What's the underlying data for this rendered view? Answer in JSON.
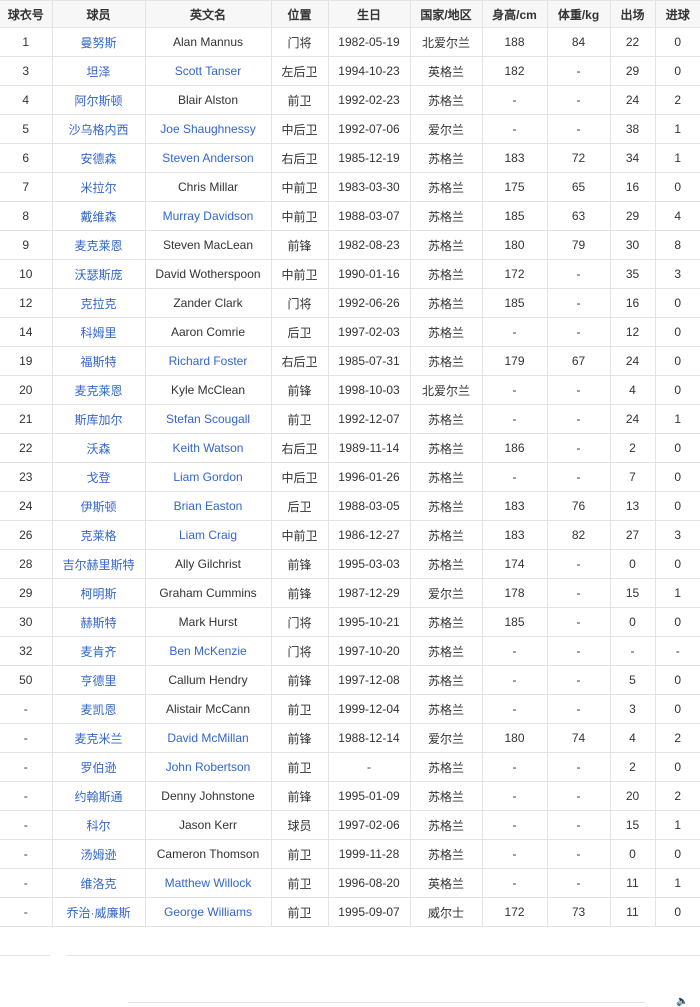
{
  "table": {
    "headers": [
      "球衣号",
      "球员",
      "英文名",
      "位置",
      "生日",
      "国家/地区",
      "身高/cm",
      "体重/kg",
      "出场",
      "进球"
    ],
    "link_color": "#3366cc",
    "rows": [
      {
        "no": "1",
        "cn": "曼努斯",
        "en": "Alan Mannus",
        "en_link": false,
        "pos": "门将",
        "birth": "1982-05-19",
        "nation": "北爱尔兰",
        "height": "188",
        "weight": "84",
        "apps": "22",
        "goals": "0"
      },
      {
        "no": "3",
        "cn": "坦泽",
        "en": "Scott Tanser",
        "en_link": true,
        "pos": "左后卫",
        "birth": "1994-10-23",
        "nation": "英格兰",
        "height": "182",
        "weight": "-",
        "apps": "29",
        "goals": "0"
      },
      {
        "no": "4",
        "cn": "阿尔斯顿",
        "en": "Blair Alston",
        "en_link": false,
        "pos": "前卫",
        "birth": "1992-02-23",
        "nation": "苏格兰",
        "height": "-",
        "weight": "-",
        "apps": "24",
        "goals": "2"
      },
      {
        "no": "5",
        "cn": "沙乌格内西",
        "en": "Joe Shaughnessy",
        "en_link": true,
        "pos": "中后卫",
        "birth": "1992-07-06",
        "nation": "爱尔兰",
        "height": "-",
        "weight": "-",
        "apps": "38",
        "goals": "1"
      },
      {
        "no": "6",
        "cn": "安德森",
        "en": "Steven Anderson",
        "en_link": true,
        "pos": "右后卫",
        "birth": "1985-12-19",
        "nation": "苏格兰",
        "height": "183",
        "weight": "72",
        "apps": "34",
        "goals": "1"
      },
      {
        "no": "7",
        "cn": "米拉尔",
        "en": "Chris Millar",
        "en_link": false,
        "pos": "中前卫",
        "birth": "1983-03-30",
        "nation": "苏格兰",
        "height": "175",
        "weight": "65",
        "apps": "16",
        "goals": "0"
      },
      {
        "no": "8",
        "cn": "戴维森",
        "en": "Murray Davidson",
        "en_link": true,
        "pos": "中前卫",
        "birth": "1988-03-07",
        "nation": "苏格兰",
        "height": "185",
        "weight": "63",
        "apps": "29",
        "goals": "4"
      },
      {
        "no": "9",
        "cn": "麦克莱恩",
        "en": "Steven MacLean",
        "en_link": false,
        "pos": "前锋",
        "birth": "1982-08-23",
        "nation": "苏格兰",
        "height": "180",
        "weight": "79",
        "apps": "30",
        "goals": "8"
      },
      {
        "no": "10",
        "cn": "沃瑟斯庞",
        "en": "David Wotherspoon",
        "en_link": false,
        "pos": "中前卫",
        "birth": "1990-01-16",
        "nation": "苏格兰",
        "height": "172",
        "weight": "-",
        "apps": "35",
        "goals": "3"
      },
      {
        "no": "12",
        "cn": "克拉克",
        "en": "Zander Clark",
        "en_link": false,
        "pos": "门将",
        "birth": "1992-06-26",
        "nation": "苏格兰",
        "height": "185",
        "weight": "-",
        "apps": "16",
        "goals": "0"
      },
      {
        "no": "14",
        "cn": "科姆里",
        "en": "Aaron Comrie",
        "en_link": false,
        "pos": "后卫",
        "birth": "1997-02-03",
        "nation": "苏格兰",
        "height": "-",
        "weight": "-",
        "apps": "12",
        "goals": "0"
      },
      {
        "no": "19",
        "cn": "福斯特",
        "en": "Richard Foster",
        "en_link": true,
        "pos": "右后卫",
        "birth": "1985-07-31",
        "nation": "苏格兰",
        "height": "179",
        "weight": "67",
        "apps": "24",
        "goals": "0"
      },
      {
        "no": "20",
        "cn": "麦克莱恩",
        "en": "Kyle McClean",
        "en_link": false,
        "pos": "前锋",
        "birth": "1998-10-03",
        "nation": "北爱尔兰",
        "height": "-",
        "weight": "-",
        "apps": "4",
        "goals": "0"
      },
      {
        "no": "21",
        "cn": "斯库加尔",
        "en": "Stefan Scougall",
        "en_link": true,
        "pos": "前卫",
        "birth": "1992-12-07",
        "nation": "苏格兰",
        "height": "-",
        "weight": "-",
        "apps": "24",
        "goals": "1"
      },
      {
        "no": "22",
        "cn": "沃森",
        "en": "Keith Watson",
        "en_link": true,
        "pos": "右后卫",
        "birth": "1989-11-14",
        "nation": "苏格兰",
        "height": "186",
        "weight": "-",
        "apps": "2",
        "goals": "0"
      },
      {
        "no": "23",
        "cn": "戈登",
        "en": "Liam Gordon",
        "en_link": true,
        "pos": "中后卫",
        "birth": "1996-01-26",
        "nation": "苏格兰",
        "height": "-",
        "weight": "-",
        "apps": "7",
        "goals": "0"
      },
      {
        "no": "24",
        "cn": "伊斯顿",
        "en": "Brian Easton",
        "en_link": true,
        "pos": "后卫",
        "birth": "1988-03-05",
        "nation": "苏格兰",
        "height": "183",
        "weight": "76",
        "apps": "13",
        "goals": "0"
      },
      {
        "no": "26",
        "cn": "克莱格",
        "en": "Liam Craig",
        "en_link": true,
        "pos": "中前卫",
        "birth": "1986-12-27",
        "nation": "苏格兰",
        "height": "183",
        "weight": "82",
        "apps": "27",
        "goals": "3"
      },
      {
        "no": "28",
        "cn": "吉尔赫里斯特",
        "en": "Ally Gilchrist",
        "en_link": false,
        "pos": "前锋",
        "birth": "1995-03-03",
        "nation": "苏格兰",
        "height": "174",
        "weight": "-",
        "apps": "0",
        "goals": "0"
      },
      {
        "no": "29",
        "cn": "柯明斯",
        "en": "Graham Cummins",
        "en_link": false,
        "pos": "前锋",
        "birth": "1987-12-29",
        "nation": "爱尔兰",
        "height": "178",
        "weight": "-",
        "apps": "15",
        "goals": "1"
      },
      {
        "no": "30",
        "cn": "赫斯特",
        "en": "Mark Hurst",
        "en_link": false,
        "pos": "门将",
        "birth": "1995-10-21",
        "nation": "苏格兰",
        "height": "185",
        "weight": "-",
        "apps": "0",
        "goals": "0"
      },
      {
        "no": "32",
        "cn": "麦肯齐",
        "en": "Ben McKenzie",
        "en_link": true,
        "pos": "门将",
        "birth": "1997-10-20",
        "nation": "苏格兰",
        "height": "-",
        "weight": "-",
        "apps": "-",
        "goals": "-"
      },
      {
        "no": "50",
        "cn": "亨德里",
        "en": "Callum Hendry",
        "en_link": false,
        "pos": "前锋",
        "birth": "1997-12-08",
        "nation": "苏格兰",
        "height": "-",
        "weight": "-",
        "apps": "5",
        "goals": "0"
      },
      {
        "no": "-",
        "cn": "麦凯恩",
        "en": "Alistair McCann",
        "en_link": false,
        "pos": "前卫",
        "birth": "1999-12-04",
        "nation": "苏格兰",
        "height": "-",
        "weight": "-",
        "apps": "3",
        "goals": "0"
      },
      {
        "no": "-",
        "cn": "麦克米兰",
        "en": "David McMillan",
        "en_link": true,
        "pos": "前锋",
        "birth": "1988-12-14",
        "nation": "爱尔兰",
        "height": "180",
        "weight": "74",
        "apps": "4",
        "goals": "2"
      },
      {
        "no": "-",
        "cn": "罗伯逊",
        "en": "John Robertson",
        "en_link": true,
        "pos": "前卫",
        "birth": "-",
        "nation": "苏格兰",
        "height": "-",
        "weight": "-",
        "apps": "2",
        "goals": "0"
      },
      {
        "no": "-",
        "cn": "约翰斯通",
        "en": "Denny Johnstone",
        "en_link": false,
        "pos": "前锋",
        "birth": "1995-01-09",
        "nation": "苏格兰",
        "height": "-",
        "weight": "-",
        "apps": "20",
        "goals": "2"
      },
      {
        "no": "-",
        "cn": "科尔",
        "en": "Jason Kerr",
        "en_link": false,
        "pos": "球员",
        "birth": "1997-02-06",
        "nation": "苏格兰",
        "height": "-",
        "weight": "-",
        "apps": "15",
        "goals": "1"
      },
      {
        "no": "-",
        "cn": "汤姆逊",
        "en": "Cameron Thomson",
        "en_link": false,
        "pos": "前卫",
        "birth": "1999-11-28",
        "nation": "苏格兰",
        "height": "-",
        "weight": "-",
        "apps": "0",
        "goals": "0"
      },
      {
        "no": "-",
        "cn": "维洛克",
        "en": "Matthew Willock",
        "en_link": true,
        "pos": "前卫",
        "birth": "1996-08-20",
        "nation": "英格兰",
        "height": "-",
        "weight": "-",
        "apps": "11",
        "goals": "1"
      },
      {
        "no": "-",
        "cn": "乔治·威廉斯",
        "en": "George Williams",
        "en_link": true,
        "pos": "前卫",
        "birth": "1995-09-07",
        "nation": "威尔士",
        "height": "172",
        "weight": "73",
        "apps": "11",
        "goals": "0"
      }
    ]
  },
  "footer": {
    "icon": "audio-icon"
  }
}
